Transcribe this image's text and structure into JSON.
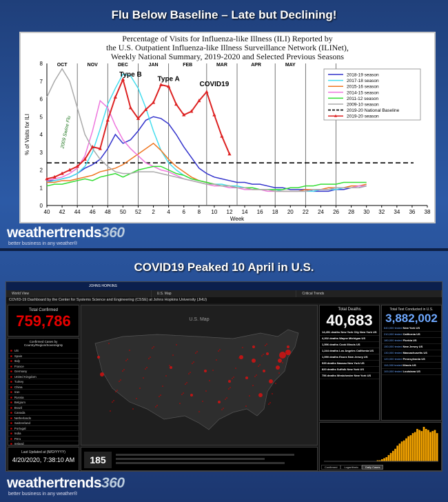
{
  "slide1": {
    "title": "Flu Below Baseline – Late but Declining!",
    "chart_data": {
      "type": "line",
      "title_lines": [
        "Percentage of Visits for Influenza-like Illness (ILI) Reported by",
        "the U.S. Outpatient Influenza-like Illness Surveillance Network (ILINet),",
        "Weekly National Summary, 2019-2020 and Selected Previous Seasons"
      ],
      "xlabel": "Week",
      "ylabel": "% of Visits for ILI",
      "ylim": [
        0,
        8
      ],
      "yticks": [
        "0",
        "1",
        "2",
        "3",
        "4",
        "5",
        "6",
        "7",
        "8"
      ],
      "xticks": [
        "40",
        "42",
        "44",
        "46",
        "48",
        "50",
        "52",
        "2",
        "4",
        "6",
        "8",
        "10",
        "12",
        "14",
        "16",
        "18",
        "20",
        "22",
        "24",
        "26",
        "28",
        "30",
        "32",
        "34",
        "36",
        "38"
      ],
      "months": [
        "OCT",
        "NOV",
        "DEC",
        "JAN",
        "FEB",
        "MAR",
        "APR",
        "MAY"
      ],
      "annotations": [
        "Type B",
        "Type A",
        "COVID19",
        "2009 Swine Flu"
      ],
      "baseline": 2.4,
      "legend_position": "top-right",
      "series": [
        {
          "name": "2018-19 season",
          "color": "#3333cc",
          "values": [
            1.4,
            1.4,
            1.5,
            1.6,
            1.8,
            2.1,
            2.3,
            2.6,
            3.2,
            4.0,
            3.5,
            3.7,
            4.2,
            4.8,
            5.0,
            4.9,
            4.6,
            4.0,
            3.3,
            2.7,
            2.1,
            1.8,
            1.6,
            1.5,
            1.4,
            1.3,
            1.3,
            1.2,
            1.2,
            1.1,
            1.0,
            1.0,
            0.9,
            0.9,
            0.9,
            0.8,
            0.8,
            0.8,
            0.9,
            0.9,
            1.0,
            1.0,
            1.1
          ]
        },
        {
          "name": "2017-18 season",
          "color": "#44ddee",
          "values": [
            1.3,
            1.4,
            1.5,
            1.6,
            1.8,
            2.2,
            3.0,
            4.3,
            5.7,
            6.6,
            7.4,
            7.3,
            6.6,
            5.5,
            4.2,
            3.1,
            2.4,
            2.0,
            1.7,
            1.5,
            1.4,
            1.3,
            1.2,
            1.2,
            1.1,
            1.1,
            1.0,
            1.0,
            0.9,
            0.9,
            0.9,
            0.8,
            0.8,
            0.8,
            0.8,
            0.8,
            0.9,
            0.9,
            0.9,
            1.0,
            1.0,
            1.1,
            1.1
          ]
        },
        {
          "name": "2015-16 season",
          "color": "#ee7722",
          "values": [
            1.3,
            1.3,
            1.4,
            1.4,
            1.5,
            1.6,
            1.7,
            1.9,
            2.0,
            2.1,
            2.3,
            2.6,
            2.9,
            3.2,
            3.5,
            3.1,
            2.6,
            2.2,
            1.9,
            1.6,
            1.4,
            1.3,
            1.2,
            1.1,
            1.1,
            1.0,
            1.0,
            0.9,
            0.9,
            0.9,
            0.8,
            0.8,
            0.8,
            0.8,
            0.9,
            0.9,
            0.9,
            1.0,
            1.0,
            1.0,
            1.1,
            1.1,
            1.2
          ]
        },
        {
          "name": "2014-15 season",
          "color": "#ee77dd",
          "values": [
            1.4,
            1.5,
            1.6,
            1.8,
            2.1,
            2.8,
            4.2,
            5.9,
            5.5,
            4.5,
            3.7,
            3.2,
            2.8,
            2.4,
            2.2,
            2.0,
            1.9,
            1.7,
            1.5,
            1.4,
            1.3,
            1.2,
            1.1,
            1.1,
            1.0,
            1.0,
            0.9,
            0.9,
            0.9,
            0.8,
            0.8,
            0.8,
            0.8,
            0.8,
            0.8,
            0.9,
            0.9,
            0.9,
            1.0,
            1.0,
            1.0,
            1.1,
            1.1
          ]
        },
        {
          "name": "2011-12 season",
          "color": "#33dd33",
          "values": [
            1.1,
            1.2,
            1.2,
            1.3,
            1.4,
            1.5,
            1.4,
            1.6,
            1.7,
            1.8,
            1.6,
            1.8,
            2.0,
            2.1,
            2.2,
            2.2,
            2.0,
            1.8,
            1.7,
            1.5,
            1.4,
            1.3,
            1.2,
            1.1,
            1.1,
            1.0,
            1.0,
            1.0,
            0.9,
            0.9,
            0.9,
            0.9,
            1.0,
            1.0,
            1.1,
            1.1,
            1.2,
            1.2,
            1.2,
            1.3,
            1.3,
            1.3,
            1.3
          ]
        },
        {
          "name": "2009-10 season",
          "color": "#aaaaaa",
          "values": [
            6.1,
            7.0,
            7.7,
            7.0,
            5.5,
            4.0,
            3.2,
            2.6,
            2.2,
            1.9,
            1.8,
            1.8,
            1.9,
            1.9,
            1.9,
            1.8,
            1.7,
            1.6,
            1.5,
            1.4,
            1.3,
            1.2,
            1.2,
            1.1,
            1.1,
            1.0,
            1.0,
            0.9,
            0.9,
            0.9,
            0.8,
            0.8,
            0.8,
            0.8,
            0.8,
            0.9,
            0.9,
            0.9,
            1.0,
            1.0,
            1.0,
            1.0,
            1.1
          ]
        },
        {
          "name": "2019-20 National Baseline",
          "color": "#000000",
          "dashed": true
        },
        {
          "name": "2019-20 season",
          "color": "#dd2222",
          "marker": true,
          "values": [
            1.5,
            1.6,
            1.8,
            2.0,
            2.2,
            2.6,
            3.3,
            3.2,
            4.8,
            6.1,
            7.1,
            5.5,
            4.9,
            5.4,
            5.8,
            6.8,
            6.7,
            5.7,
            5.1,
            5.3,
            5.9,
            6.4,
            5.1,
            3.9,
            2.9
          ]
        }
      ]
    }
  },
  "slide2": {
    "title": "COVID19 Peaked 10 April in U.S.",
    "dashboard": {
      "university": "JOHNS HOPKINS",
      "nav_tabs": [
        "World View",
        "U.S. Map",
        "Critical Trends"
      ],
      "header": "COVID-19 Dashboard by the Center for Systems Science and Engineering (CSSE) at Johns Hopkins University (JHU)",
      "confirmed_label": "Total Confirmed",
      "confirmed_value": "759,786",
      "list_label": "Confirmed Cases by Country/Region/Sovereignty",
      "countries": [
        "US",
        "Spain",
        "Italy",
        "France",
        "Germany",
        "United Kingdom",
        "Turkey",
        "China",
        "Iran",
        "Russia",
        "Belgium",
        "Brazil",
        "Canada",
        "Netherlands",
        "Switzerland",
        "Portugal",
        "India",
        "Peru",
        "Ireland",
        "Austria",
        "Sweden",
        "Israel",
        "Japan",
        "Korea, South"
      ],
      "last_updated_label": "Last Updated at (M/D/YYYY)",
      "last_updated": "4/20/2020, 7:38:10 AM",
      "countries_count": "185",
      "map_label": "U.S. Map",
      "deaths_label": "Total Deaths",
      "deaths_value": "40,683",
      "tests_label": "Total Test Conducted in U.S.",
      "tests_value": "3,882,002",
      "deaths_list": [
        {
          "count": "14,451 deaths",
          "place": "New York City New York US"
        },
        {
          "count": "4,202 deaths",
          "place": "Wayne Michigan US"
        },
        {
          "count": "1,596 deaths",
          "place": "Cook Illinois US"
        },
        {
          "count": "1,244 deaths",
          "place": "Los Angeles California US"
        },
        {
          "count": "1,090 deaths",
          "place": "Essex New Jersey US"
        },
        {
          "count": "935 deaths",
          "place": "Nassau New York US"
        },
        {
          "count": "820 deaths",
          "place": "Suffolk New York US"
        },
        {
          "count": "756 deaths",
          "place": "Westchester New York US"
        }
      ],
      "tests_list": [
        {
          "count": "640,000 tested",
          "place": "New York US"
        },
        {
          "count": "210,000 tested",
          "place": "California US"
        },
        {
          "count": "180,000 tested",
          "place": "Florida US"
        },
        {
          "count": "150,000 tested",
          "place": "New Jersey US"
        },
        {
          "count": "130,000 tested",
          "place": "Massachusetts US"
        },
        {
          "count": "120,000 tested",
          "place": "Pennsylvania US"
        },
        {
          "count": "110,000 tested",
          "place": "Illinois US"
        },
        {
          "count": "100,000 tested",
          "place": "Louisiana US"
        }
      ],
      "chart_tabs": [
        "Confirmed",
        "Logarithmic",
        "Daily Cases"
      ],
      "daily_cases": [
        0,
        0,
        0,
        0,
        0,
        0,
        0,
        0,
        0,
        0,
        0,
        0,
        0,
        0,
        0,
        0,
        0,
        0,
        0,
        0,
        0,
        0,
        0,
        0,
        1,
        1,
        2,
        3,
        4,
        6,
        8,
        10,
        12,
        15,
        17,
        19,
        20,
        22,
        24,
        25,
        27,
        28,
        31,
        30,
        29,
        33,
        31,
        30,
        28,
        29,
        30,
        27
      ]
    }
  },
  "brand": {
    "name": "weathertrends",
    "number": "360",
    "tagline": "better business in any weather®"
  }
}
